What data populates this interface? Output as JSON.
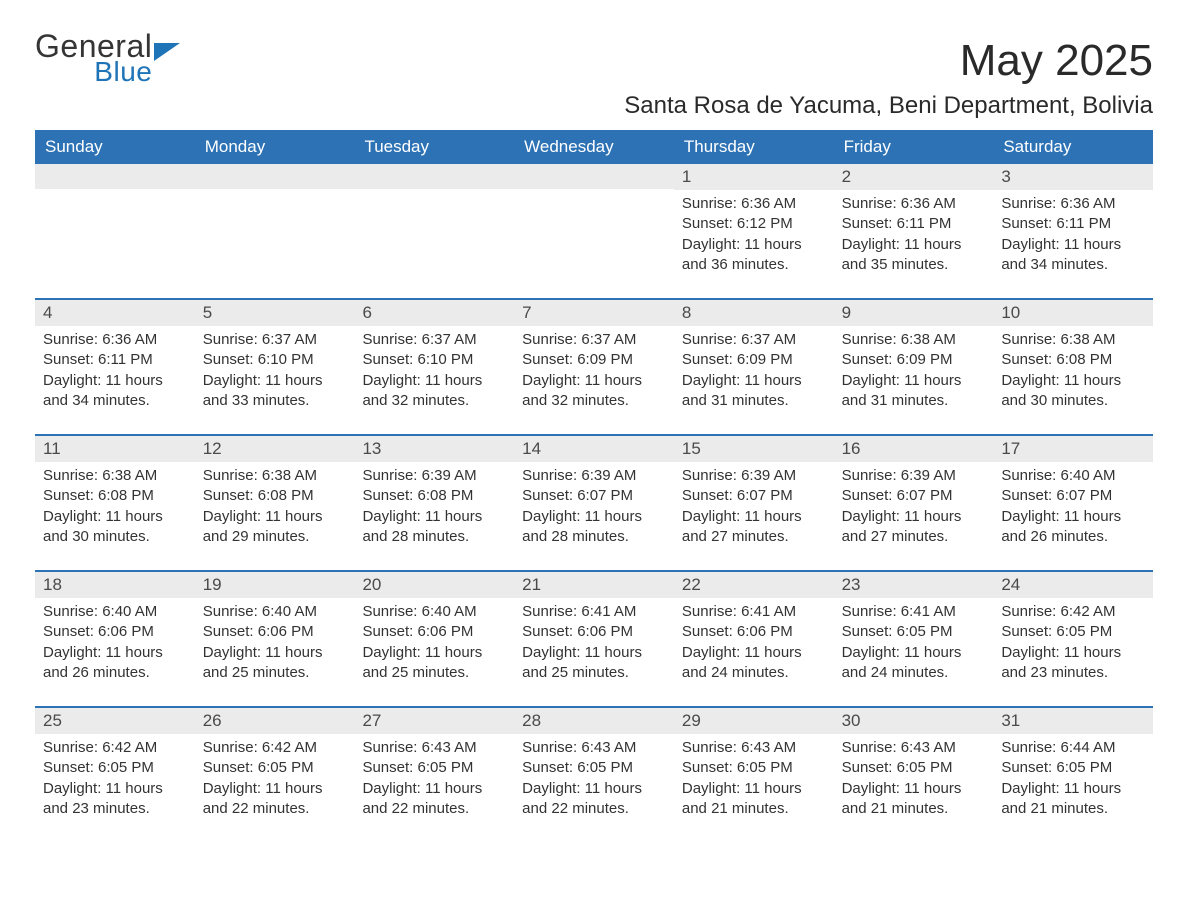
{
  "logo": {
    "general": "General",
    "blue": "Blue"
  },
  "title": "May 2025",
  "subtitle": "Santa Rosa de Yacuma, Beni Department, Bolivia",
  "colors": {
    "header_bg": "#2c72b5",
    "header_text": "#ffffff",
    "daynum_bg": "#ebebeb",
    "week_border": "#2c72b5",
    "logo_blue": "#1f73b7",
    "body_text": "#333333",
    "page_bg": "#ffffff"
  },
  "weekdays": [
    "Sunday",
    "Monday",
    "Tuesday",
    "Wednesday",
    "Thursday",
    "Friday",
    "Saturday"
  ],
  "weeks": [
    [
      {
        "n": "",
        "sunrise": "",
        "sunset": "",
        "daylight": ""
      },
      {
        "n": "",
        "sunrise": "",
        "sunset": "",
        "daylight": ""
      },
      {
        "n": "",
        "sunrise": "",
        "sunset": "",
        "daylight": ""
      },
      {
        "n": "",
        "sunrise": "",
        "sunset": "",
        "daylight": ""
      },
      {
        "n": "1",
        "sunrise": "Sunrise: 6:36 AM",
        "sunset": "Sunset: 6:12 PM",
        "daylight": "Daylight: 11 hours and 36 minutes."
      },
      {
        "n": "2",
        "sunrise": "Sunrise: 6:36 AM",
        "sunset": "Sunset: 6:11 PM",
        "daylight": "Daylight: 11 hours and 35 minutes."
      },
      {
        "n": "3",
        "sunrise": "Sunrise: 6:36 AM",
        "sunset": "Sunset: 6:11 PM",
        "daylight": "Daylight: 11 hours and 34 minutes."
      }
    ],
    [
      {
        "n": "4",
        "sunrise": "Sunrise: 6:36 AM",
        "sunset": "Sunset: 6:11 PM",
        "daylight": "Daylight: 11 hours and 34 minutes."
      },
      {
        "n": "5",
        "sunrise": "Sunrise: 6:37 AM",
        "sunset": "Sunset: 6:10 PM",
        "daylight": "Daylight: 11 hours and 33 minutes."
      },
      {
        "n": "6",
        "sunrise": "Sunrise: 6:37 AM",
        "sunset": "Sunset: 6:10 PM",
        "daylight": "Daylight: 11 hours and 32 minutes."
      },
      {
        "n": "7",
        "sunrise": "Sunrise: 6:37 AM",
        "sunset": "Sunset: 6:09 PM",
        "daylight": "Daylight: 11 hours and 32 minutes."
      },
      {
        "n": "8",
        "sunrise": "Sunrise: 6:37 AM",
        "sunset": "Sunset: 6:09 PM",
        "daylight": "Daylight: 11 hours and 31 minutes."
      },
      {
        "n": "9",
        "sunrise": "Sunrise: 6:38 AM",
        "sunset": "Sunset: 6:09 PM",
        "daylight": "Daylight: 11 hours and 31 minutes."
      },
      {
        "n": "10",
        "sunrise": "Sunrise: 6:38 AM",
        "sunset": "Sunset: 6:08 PM",
        "daylight": "Daylight: 11 hours and 30 minutes."
      }
    ],
    [
      {
        "n": "11",
        "sunrise": "Sunrise: 6:38 AM",
        "sunset": "Sunset: 6:08 PM",
        "daylight": "Daylight: 11 hours and 30 minutes."
      },
      {
        "n": "12",
        "sunrise": "Sunrise: 6:38 AM",
        "sunset": "Sunset: 6:08 PM",
        "daylight": "Daylight: 11 hours and 29 minutes."
      },
      {
        "n": "13",
        "sunrise": "Sunrise: 6:39 AM",
        "sunset": "Sunset: 6:08 PM",
        "daylight": "Daylight: 11 hours and 28 minutes."
      },
      {
        "n": "14",
        "sunrise": "Sunrise: 6:39 AM",
        "sunset": "Sunset: 6:07 PM",
        "daylight": "Daylight: 11 hours and 28 minutes."
      },
      {
        "n": "15",
        "sunrise": "Sunrise: 6:39 AM",
        "sunset": "Sunset: 6:07 PM",
        "daylight": "Daylight: 11 hours and 27 minutes."
      },
      {
        "n": "16",
        "sunrise": "Sunrise: 6:39 AM",
        "sunset": "Sunset: 6:07 PM",
        "daylight": "Daylight: 11 hours and 27 minutes."
      },
      {
        "n": "17",
        "sunrise": "Sunrise: 6:40 AM",
        "sunset": "Sunset: 6:07 PM",
        "daylight": "Daylight: 11 hours and 26 minutes."
      }
    ],
    [
      {
        "n": "18",
        "sunrise": "Sunrise: 6:40 AM",
        "sunset": "Sunset: 6:06 PM",
        "daylight": "Daylight: 11 hours and 26 minutes."
      },
      {
        "n": "19",
        "sunrise": "Sunrise: 6:40 AM",
        "sunset": "Sunset: 6:06 PM",
        "daylight": "Daylight: 11 hours and 25 minutes."
      },
      {
        "n": "20",
        "sunrise": "Sunrise: 6:40 AM",
        "sunset": "Sunset: 6:06 PM",
        "daylight": "Daylight: 11 hours and 25 minutes."
      },
      {
        "n": "21",
        "sunrise": "Sunrise: 6:41 AM",
        "sunset": "Sunset: 6:06 PM",
        "daylight": "Daylight: 11 hours and 25 minutes."
      },
      {
        "n": "22",
        "sunrise": "Sunrise: 6:41 AM",
        "sunset": "Sunset: 6:06 PM",
        "daylight": "Daylight: 11 hours and 24 minutes."
      },
      {
        "n": "23",
        "sunrise": "Sunrise: 6:41 AM",
        "sunset": "Sunset: 6:05 PM",
        "daylight": "Daylight: 11 hours and 24 minutes."
      },
      {
        "n": "24",
        "sunrise": "Sunrise: 6:42 AM",
        "sunset": "Sunset: 6:05 PM",
        "daylight": "Daylight: 11 hours and 23 minutes."
      }
    ],
    [
      {
        "n": "25",
        "sunrise": "Sunrise: 6:42 AM",
        "sunset": "Sunset: 6:05 PM",
        "daylight": "Daylight: 11 hours and 23 minutes."
      },
      {
        "n": "26",
        "sunrise": "Sunrise: 6:42 AM",
        "sunset": "Sunset: 6:05 PM",
        "daylight": "Daylight: 11 hours and 22 minutes."
      },
      {
        "n": "27",
        "sunrise": "Sunrise: 6:43 AM",
        "sunset": "Sunset: 6:05 PM",
        "daylight": "Daylight: 11 hours and 22 minutes."
      },
      {
        "n": "28",
        "sunrise": "Sunrise: 6:43 AM",
        "sunset": "Sunset: 6:05 PM",
        "daylight": "Daylight: 11 hours and 22 minutes."
      },
      {
        "n": "29",
        "sunrise": "Sunrise: 6:43 AM",
        "sunset": "Sunset: 6:05 PM",
        "daylight": "Daylight: 11 hours and 21 minutes."
      },
      {
        "n": "30",
        "sunrise": "Sunrise: 6:43 AM",
        "sunset": "Sunset: 6:05 PM",
        "daylight": "Daylight: 11 hours and 21 minutes."
      },
      {
        "n": "31",
        "sunrise": "Sunrise: 6:44 AM",
        "sunset": "Sunset: 6:05 PM",
        "daylight": "Daylight: 11 hours and 21 minutes."
      }
    ]
  ]
}
